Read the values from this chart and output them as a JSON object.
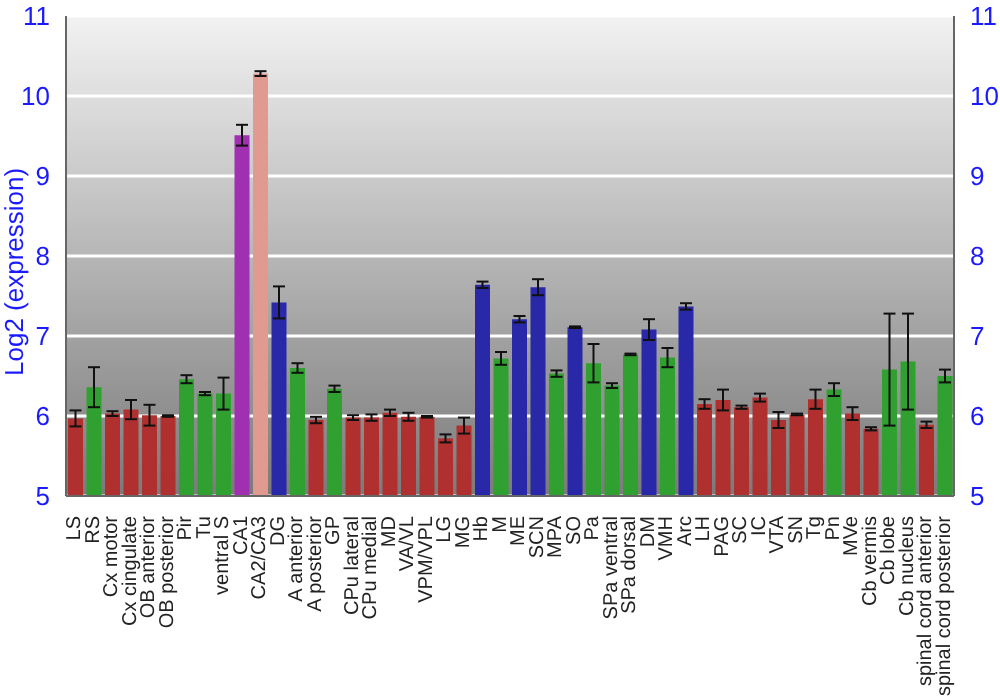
{
  "chart_data": {
    "type": "bar",
    "ylabel": "Log2 (expression)",
    "categories": [
      "LS",
      "RS",
      "Cx motor",
      "Cx cingulate",
      "OB anterior",
      "OB posterior",
      "Pir",
      "Tu",
      "ventral S",
      "CA1",
      "CA2/CA3",
      "DG",
      "A anterior",
      "A posterior",
      "GP",
      "CPu lateral",
      "CPu medial",
      "MD",
      "VA/VL",
      "VPM/VPL",
      "LG",
      "MG",
      "Hb",
      "M",
      "ME",
      "SCN",
      "MPA",
      "SO",
      "Pa",
      "SPa ventral",
      "SPa dorsal",
      "DM",
      "VMH",
      "Arc",
      "LH",
      "PAG",
      "SC",
      "IC",
      "VTA",
      "SN",
      "Tg",
      "Pn",
      "MVe",
      "Cb vermis",
      "Cb lobe",
      "Cb nucleus",
      "spinal cord anterior",
      "spinal cord posterior"
    ],
    "values": [
      5.97,
      6.36,
      6.03,
      6.08,
      6.01,
      6.0,
      6.46,
      6.28,
      6.28,
      9.51,
      10.28,
      7.42,
      6.6,
      5.95,
      6.34,
      5.98,
      5.98,
      6.04,
      5.99,
      5.99,
      5.72,
      5.88,
      7.64,
      6.72,
      7.21,
      7.61,
      6.53,
      7.11,
      6.66,
      6.38,
      6.77,
      7.08,
      6.73,
      7.37,
      6.15,
      6.2,
      6.11,
      6.23,
      5.95,
      6.02,
      6.21,
      6.33,
      6.03,
      5.84,
      6.58,
      6.68,
      5.89,
      6.5
    ],
    "errors": [
      0.1,
      0.25,
      0.03,
      0.12,
      0.13,
      0.01,
      0.05,
      0.02,
      0.2,
      0.13,
      0.03,
      0.2,
      0.06,
      0.04,
      0.04,
      0.03,
      0.04,
      0.04,
      0.05,
      0.01,
      0.05,
      0.1,
      0.04,
      0.08,
      0.04,
      0.1,
      0.04,
      0.01,
      0.24,
      0.03,
      0.01,
      0.13,
      0.12,
      0.04,
      0.06,
      0.13,
      0.02,
      0.05,
      0.1,
      0.01,
      0.12,
      0.08,
      0.08,
      0.02,
      0.7,
      0.6,
      0.04,
      0.08
    ],
    "colors": [
      "#b03030",
      "#30a030",
      "#b03030",
      "#b03030",
      "#b03030",
      "#b03030",
      "#30a030",
      "#30a030",
      "#30a030",
      "#a030b0",
      "#e09a90",
      "#2828a8",
      "#30a030",
      "#b03030",
      "#30a030",
      "#b03030",
      "#b03030",
      "#b03030",
      "#b03030",
      "#b03030",
      "#b03030",
      "#b03030",
      "#2828a8",
      "#30a030",
      "#2828a8",
      "#2828a8",
      "#30a030",
      "#2828a8",
      "#30a030",
      "#30a030",
      "#30a030",
      "#2828a8",
      "#30a030",
      "#2828a8",
      "#b03030",
      "#b03030",
      "#b03030",
      "#b03030",
      "#b03030",
      "#b03030",
      "#b03030",
      "#30a030",
      "#b03030",
      "#b03030",
      "#30a030",
      "#30a030",
      "#b03030",
      "#30a030"
    ],
    "ylim": [
      5,
      11
    ],
    "yticks": [
      5,
      6,
      7,
      8,
      9,
      10,
      11
    ],
    "y2lim": [
      5,
      11
    ],
    "y2ticks": [
      5,
      6,
      7,
      8,
      9,
      10,
      11
    ],
    "grid": "y"
  }
}
